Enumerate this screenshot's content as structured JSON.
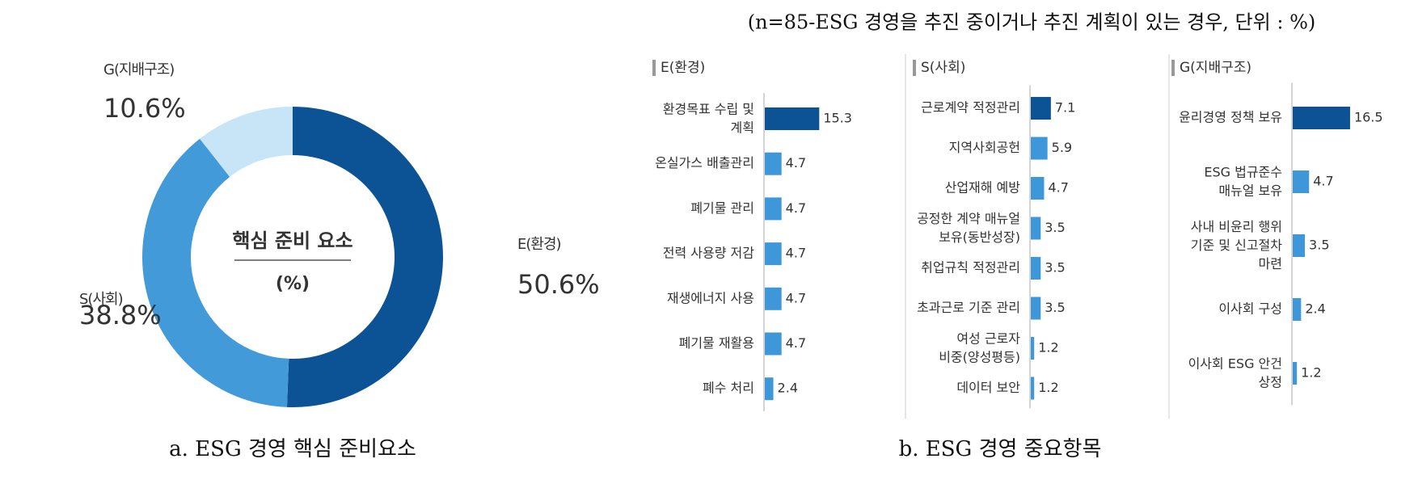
{
  "note": "(n=85-ESG 경영을 추진 중이거나 추진 계획이 있는 경우, 단위 : %)",
  "captions": [
    "a. ESG 경영 핵심 준비요소",
    "b. ESG 경영 중요항목"
  ],
  "chart_data": [
    {
      "type": "pie",
      "center_title": "핵심 준비 요소",
      "center_subtitle": "(%)",
      "categories": [
        "E(환경)",
        "S(사회)",
        "G(지배구조)"
      ],
      "values": [
        50.6,
        38.8,
        10.6
      ],
      "value_labels": [
        "50.6%",
        "38.8%",
        "10.6%"
      ],
      "colors": [
        "#0b5394",
        "#429ad8",
        "#c8e5f7"
      ]
    },
    {
      "type": "bar",
      "title": "E(환경)",
      "categories": [
        "환경목표 수립 및\n계획",
        "온실가스 배출관리",
        "폐기물 관리",
        "전력 사용량 저감",
        "재생에너지 사용",
        "폐기물 재활용",
        "폐수 처리"
      ],
      "values": [
        15.3,
        4.7,
        4.7,
        4.7,
        4.7,
        4.7,
        2.4
      ],
      "colors": [
        "#0b5394",
        "#3d97d8",
        "#3d97d8",
        "#3d97d8",
        "#3d97d8",
        "#3d97d8",
        "#3d97d8"
      ]
    },
    {
      "type": "bar",
      "title": "S(사회)",
      "categories": [
        "근로계약 적정관리",
        "지역사회공헌",
        "산업재해 예방",
        "공정한 계약 매뉴얼\n보유(동반성장)",
        "취업규칙 적정관리",
        "초과근로 기준 관리",
        "여성 근로자\n비중(양성평등)",
        "데이터 보안"
      ],
      "values": [
        7.1,
        5.9,
        4.7,
        3.5,
        3.5,
        3.5,
        1.2,
        1.2
      ],
      "colors": [
        "#0b5394",
        "#3d97d8",
        "#3d97d8",
        "#3d97d8",
        "#3d97d8",
        "#3d97d8",
        "#3d97d8",
        "#3d97d8"
      ]
    },
    {
      "type": "bar",
      "title": "G(지배구조)",
      "categories": [
        "윤리경영 정책 보유",
        "ESG 법규준수\n매뉴얼 보유",
        "사내 비윤리 행위\n기준 및 신고절차\n마련",
        "이사회 구성",
        "이사회 ESG 안건\n상정"
      ],
      "values": [
        16.5,
        4.7,
        3.5,
        2.4,
        1.2
      ],
      "colors": [
        "#0b5394",
        "#3d97d8",
        "#3d97d8",
        "#3d97d8",
        "#3d97d8"
      ]
    }
  ]
}
